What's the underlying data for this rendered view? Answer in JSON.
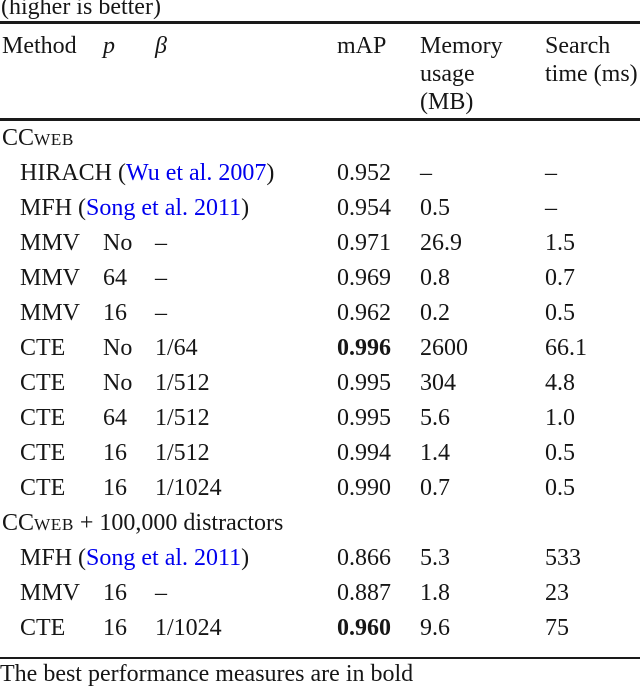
{
  "caption": "(higher is better)",
  "colors": {
    "link_blue": "#0000EE",
    "text": "#161616"
  },
  "table": {
    "headers": {
      "method": "Method",
      "p": "p",
      "beta": "β",
      "map": "mAP",
      "memory_lines": [
        "Memory",
        "usage",
        "(MB)"
      ],
      "search_lines": [
        "Search",
        "time (ms)"
      ]
    },
    "rows": [
      {
        "kind": "section",
        "prefix": "CC",
        "sc": "WEB",
        "suffix": ""
      },
      {
        "kind": "data",
        "method": "HIRACH",
        "pre": " (",
        "cite": "Wu et al. 2007",
        "post": ")",
        "p": "",
        "beta": "",
        "map": "0.952",
        "mem": "–",
        "time": "–"
      },
      {
        "kind": "data",
        "method": "MFH",
        "pre": " (",
        "cite": "Song et al. 2011",
        "post": ")",
        "p": "",
        "beta": "",
        "map": "0.954",
        "mem": "0.5",
        "time": "–"
      },
      {
        "kind": "data",
        "method": "MMV",
        "p": "No",
        "beta": "–",
        "map": "0.971",
        "mem": "26.9",
        "time": "1.5"
      },
      {
        "kind": "data",
        "method": "MMV",
        "p": "64",
        "beta": "–",
        "map": "0.969",
        "mem": "0.8",
        "time": "0.7"
      },
      {
        "kind": "data",
        "method": "MMV",
        "p": "16",
        "beta": "–",
        "map": "0.962",
        "mem": "0.2",
        "time": "0.5"
      },
      {
        "kind": "data",
        "method": "CTE",
        "p": "No",
        "beta": "1/64",
        "map": "0.996",
        "mem": "2600",
        "time": "66.1",
        "map_bold": true
      },
      {
        "kind": "data",
        "method": "CTE",
        "p": "No",
        "beta": "1/512",
        "map": "0.995",
        "mem": "304",
        "time": "4.8"
      },
      {
        "kind": "data",
        "method": "CTE",
        "p": "64",
        "beta": "1/512",
        "map": "0.995",
        "mem": "5.6",
        "time": "1.0"
      },
      {
        "kind": "data",
        "method": "CTE",
        "p": "16",
        "beta": "1/512",
        "map": "0.994",
        "mem": "1.4",
        "time": "0.5"
      },
      {
        "kind": "data",
        "method": "CTE",
        "p": "16",
        "beta": "1/1024",
        "map": "0.990",
        "mem": "0.7",
        "time": "0.5"
      },
      {
        "kind": "section",
        "prefix": "CC",
        "sc": "WEB",
        "suffix": " + 100,000 distractors"
      },
      {
        "kind": "data",
        "method": "MFH",
        "pre": " (",
        "cite": "Song et al. 2011",
        "post": ")",
        "p": "",
        "beta": "",
        "map": "0.866",
        "mem": "5.3",
        "time": "533"
      },
      {
        "kind": "data",
        "method": "MMV",
        "p": "16",
        "beta": "–",
        "map": "0.887",
        "mem": "1.8",
        "time": "23"
      },
      {
        "kind": "data",
        "method": "CTE",
        "p": "16",
        "beta": "1/1024",
        "map": "0.960",
        "mem": "9.6",
        "time": "75",
        "map_bold": true
      }
    ],
    "footnote": "The best performance measures are in bold"
  }
}
